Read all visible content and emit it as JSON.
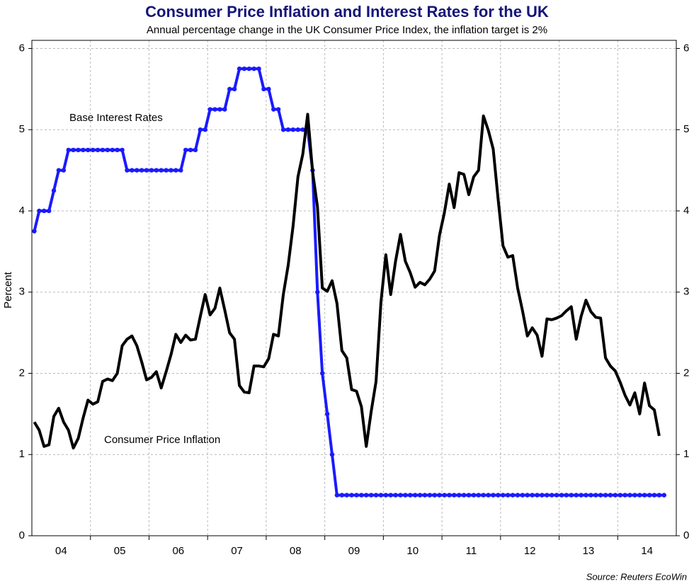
{
  "chart_data": {
    "type": "line",
    "title": "Consumer Price Inflation and Interest Rates for the UK",
    "subtitle": "Annual percentage change in the UK Consumer Price Index, the inflation target is 2%",
    "ylabel": "Percent",
    "source": "Source: Reuters EcoWin",
    "annotations": [
      "Base Interest Rates",
      "Consumer Price Inflation"
    ],
    "xlim": [
      2004,
      2015
    ],
    "xticks": [
      {
        "value": 2004.5,
        "label": "04"
      },
      {
        "value": 2005.5,
        "label": "05"
      },
      {
        "value": 2006.5,
        "label": "06"
      },
      {
        "value": 2007.5,
        "label": "07"
      },
      {
        "value": 2008.5,
        "label": "08"
      },
      {
        "value": 2009.5,
        "label": "09"
      },
      {
        "value": 2010.5,
        "label": "10"
      },
      {
        "value": 2011.5,
        "label": "11"
      },
      {
        "value": 2012.5,
        "label": "12"
      },
      {
        "value": 2013.5,
        "label": "13"
      },
      {
        "value": 2014.5,
        "label": "14"
      }
    ],
    "xgrid": [
      2005,
      2006,
      2007,
      2008,
      2009,
      2010,
      2011,
      2012,
      2013,
      2014
    ],
    "ylim": [
      0,
      6.1
    ],
    "yticks": [
      0,
      1,
      2,
      3,
      4,
      5,
      6
    ],
    "y2lim": [
      0,
      6.1
    ],
    "y2ticks": [
      0,
      1,
      2,
      3,
      4,
      5,
      6
    ],
    "grid": true,
    "x": [
      2004.042,
      2004.125,
      2004.208,
      2004.292,
      2004.375,
      2004.458,
      2004.542,
      2004.625,
      2004.708,
      2004.792,
      2004.875,
      2004.958,
      2005.042,
      2005.125,
      2005.208,
      2005.292,
      2005.375,
      2005.458,
      2005.542,
      2005.625,
      2005.708,
      2005.792,
      2005.875,
      2005.958,
      2006.042,
      2006.125,
      2006.208,
      2006.292,
      2006.375,
      2006.458,
      2006.542,
      2006.625,
      2006.708,
      2006.792,
      2006.875,
      2006.958,
      2007.042,
      2007.125,
      2007.208,
      2007.292,
      2007.375,
      2007.458,
      2007.542,
      2007.625,
      2007.708,
      2007.792,
      2007.875,
      2007.958,
      2008.042,
      2008.125,
      2008.208,
      2008.292,
      2008.375,
      2008.458,
      2008.542,
      2008.625,
      2008.708,
      2008.792,
      2008.875,
      2008.958,
      2009.042,
      2009.125,
      2009.208,
      2009.292,
      2009.375,
      2009.458,
      2009.542,
      2009.625,
      2009.708,
      2009.792,
      2009.875,
      2009.958,
      2010.042,
      2010.125,
      2010.208,
      2010.292,
      2010.375,
      2010.458,
      2010.542,
      2010.625,
      2010.708,
      2010.792,
      2010.875,
      2010.958,
      2011.042,
      2011.125,
      2011.208,
      2011.292,
      2011.375,
      2011.458,
      2011.542,
      2011.625,
      2011.708,
      2011.792,
      2011.875,
      2011.958,
      2012.042,
      2012.125,
      2012.208,
      2012.292,
      2012.375,
      2012.458,
      2012.542,
      2012.625,
      2012.708,
      2012.792,
      2012.875,
      2012.958,
      2013.042,
      2013.125,
      2013.208,
      2013.292,
      2013.375,
      2013.458,
      2013.542,
      2013.625,
      2013.708,
      2013.792,
      2013.875,
      2013.958,
      2014.042,
      2014.125,
      2014.208,
      2014.292,
      2014.375,
      2014.458,
      2014.542,
      2014.625,
      2014.708,
      2014.792
    ],
    "series": [
      {
        "name": "Base Interest Rates",
        "color": "#1a1aff",
        "markers": true,
        "values": [
          3.75,
          4,
          4,
          4,
          4.25,
          4.5,
          4.5,
          4.75,
          4.75,
          4.75,
          4.75,
          4.75,
          4.75,
          4.75,
          4.75,
          4.75,
          4.75,
          4.75,
          4.75,
          4.5,
          4.5,
          4.5,
          4.5,
          4.5,
          4.5,
          4.5,
          4.5,
          4.5,
          4.5,
          4.5,
          4.5,
          4.75,
          4.75,
          4.75,
          5,
          5,
          5.25,
          5.25,
          5.25,
          5.25,
          5.5,
          5.5,
          5.75,
          5.75,
          5.75,
          5.75,
          5.75,
          5.5,
          5.5,
          5.25,
          5.25,
          5,
          5,
          5,
          5,
          5,
          5,
          4.5,
          3,
          2,
          1.5,
          1,
          0.5,
          0.5,
          0.5,
          0.5,
          0.5,
          0.5,
          0.5,
          0.5,
          0.5,
          0.5,
          0.5,
          0.5,
          0.5,
          0.5,
          0.5,
          0.5,
          0.5,
          0.5,
          0.5,
          0.5,
          0.5,
          0.5,
          0.5,
          0.5,
          0.5,
          0.5,
          0.5,
          0.5,
          0.5,
          0.5,
          0.5,
          0.5,
          0.5,
          0.5,
          0.5,
          0.5,
          0.5,
          0.5,
          0.5,
          0.5,
          0.5,
          0.5,
          0.5,
          0.5,
          0.5,
          0.5,
          0.5,
          0.5,
          0.5,
          0.5,
          0.5,
          0.5,
          0.5,
          0.5,
          0.5,
          0.5,
          0.5,
          0.5,
          0.5,
          0.5,
          0.5,
          0.5,
          0.5,
          0.5,
          0.5,
          0.5,
          0.5,
          0.5
        ]
      },
      {
        "name": "Consumer Price Inflation",
        "color": "#000000",
        "markers": false,
        "values": [
          1.4,
          1.3,
          1.1,
          1.12,
          1.47,
          1.57,
          1.4,
          1.3,
          1.08,
          1.2,
          1.45,
          1.67,
          1.62,
          1.65,
          1.9,
          1.93,
          1.91,
          2.0,
          2.34,
          2.42,
          2.46,
          2.34,
          2.14,
          1.92,
          1.95,
          2.02,
          1.82,
          2.02,
          2.23,
          2.48,
          2.38,
          2.47,
          2.41,
          2.42,
          2.7,
          2.97,
          2.72,
          2.8,
          3.05,
          2.78,
          2.5,
          2.42,
          1.85,
          1.77,
          1.76,
          2.09,
          2.09,
          2.08,
          2.18,
          2.48,
          2.46,
          2.97,
          3.33,
          3.81,
          4.42,
          4.7,
          5.19,
          4.48,
          4.05,
          3.05,
          3.01,
          3.14,
          2.86,
          2.28,
          2.19,
          1.8,
          1.78,
          1.59,
          1.1,
          1.53,
          1.9,
          2.87,
          3.46,
          2.97,
          3.38,
          3.71,
          3.38,
          3.24,
          3.06,
          3.12,
          3.09,
          3.16,
          3.26,
          3.7,
          3.98,
          4.33,
          4.04,
          4.47,
          4.45,
          4.2,
          4.42,
          4.5,
          5.17,
          4.99,
          4.76,
          4.15,
          3.57,
          3.43,
          3.45,
          3.05,
          2.77,
          2.46,
          2.56,
          2.47,
          2.21,
          2.67,
          2.66,
          2.68,
          2.71,
          2.77,
          2.82,
          2.42,
          2.7,
          2.9,
          2.76,
          2.69,
          2.68,
          2.19,
          2.09,
          2.03,
          1.89,
          1.73,
          1.61,
          1.76,
          1.5,
          1.88,
          1.6,
          1.55,
          1.23,
          null
        ]
      }
    ]
  }
}
